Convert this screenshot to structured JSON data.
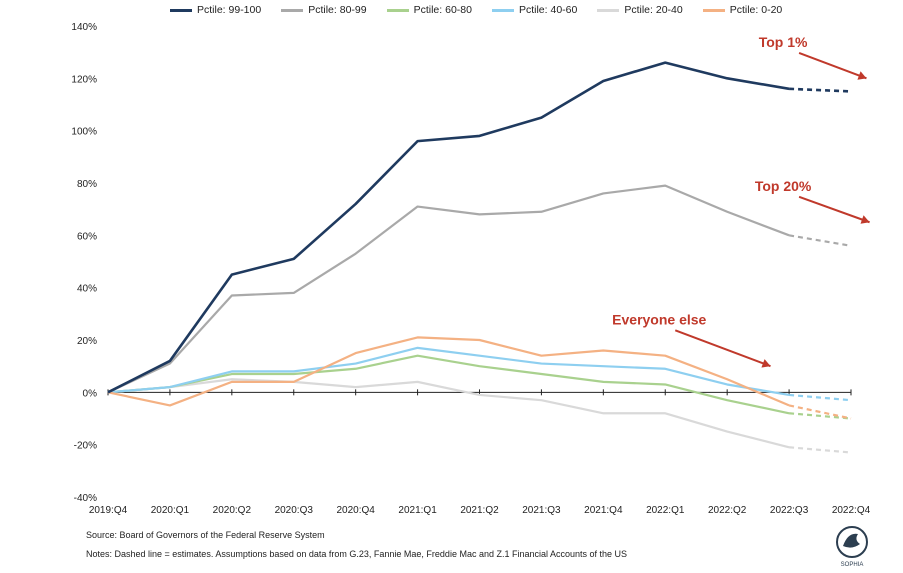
{
  "legend_colors": [
    "#1f3a5f",
    "#a9a9a9",
    "#a9d18e",
    "#8ecff0",
    "#d9d9d9",
    "#f4b183"
  ],
  "chart_data": {
    "type": "line",
    "categories": [
      "2019:Q4",
      "2020:Q1",
      "2020:Q2",
      "2020:Q3",
      "2020:Q4",
      "2021:Q1",
      "2021:Q2",
      "2021:Q3",
      "2021:Q4",
      "2022:Q1",
      "2022:Q2",
      "2022:Q3",
      "2022:Q4"
    ],
    "y_tick_labels": [
      "-40%",
      "-20%",
      "0%",
      "20%",
      "40%",
      "60%",
      "80%",
      "100%",
      "120%",
      "140%"
    ],
    "ylim": [
      -40,
      140
    ],
    "y_unit": "%",
    "dashed_segment_note": "last segment (2022:Q3 to 2022:Q4) dashed = estimates",
    "series": [
      {
        "name": "Pctile: 99-100",
        "color": "#1f3a5f",
        "width": 2.6,
        "values": [
          0,
          12,
          45,
          51,
          72,
          96,
          98,
          105,
          119,
          126,
          120,
          116,
          115
        ]
      },
      {
        "name": "Pctile: 80-99",
        "color": "#a9a9a9",
        "width": 2.2,
        "values": [
          0,
          11,
          37,
          38,
          53,
          71,
          68,
          69,
          76,
          79,
          69,
          60,
          56
        ]
      },
      {
        "name": "Pctile: 60-80",
        "color": "#a9d18e",
        "width": 2.2,
        "values": [
          0,
          2,
          7,
          7,
          9,
          14,
          10,
          7,
          4,
          3,
          -3,
          -8,
          -10
        ]
      },
      {
        "name": "Pctile: 40-60",
        "color": "#8ecff0",
        "width": 2.2,
        "values": [
          0,
          2,
          8,
          8,
          11,
          17,
          14,
          11,
          10,
          9,
          3,
          -1,
          -3
        ]
      },
      {
        "name": "Pctile: 20-40",
        "color": "#d9d9d9",
        "width": 2.2,
        "values": [
          0,
          2,
          5,
          4,
          2,
          4,
          -1,
          -3,
          -8,
          -8,
          -15,
          -21,
          -23
        ]
      },
      {
        "name": "Pctile: 0-20",
        "color": "#f4b183",
        "width": 2.2,
        "values": [
          0,
          -5,
          4,
          4,
          15,
          21,
          20,
          14,
          16,
          14,
          5,
          -5,
          -10
        ]
      }
    ],
    "annotations": [
      {
        "text": "Top 1%",
        "at_category": "2022:Q3",
        "y": 132,
        "arrow_to": [
          12.25,
          120
        ]
      },
      {
        "text": "Top 20%",
        "at_category": "2022:Q3",
        "y": 77,
        "arrow_to": [
          12.3,
          65
        ]
      },
      {
        "text": "Everyone else",
        "at_category": "2022:Q1",
        "y": 26,
        "arrow_to": [
          10.7,
          10
        ]
      }
    ]
  },
  "footer": {
    "source": "Source: Board of Governors of the Federal Reserve System",
    "notes": "Notes: Dashed line = estimates. Assumptions based on data from G.23, Fannie Mae, Freddie Mac and Z.1 Financial Accounts of the US"
  },
  "logo": {
    "text": "SOPHIA"
  }
}
